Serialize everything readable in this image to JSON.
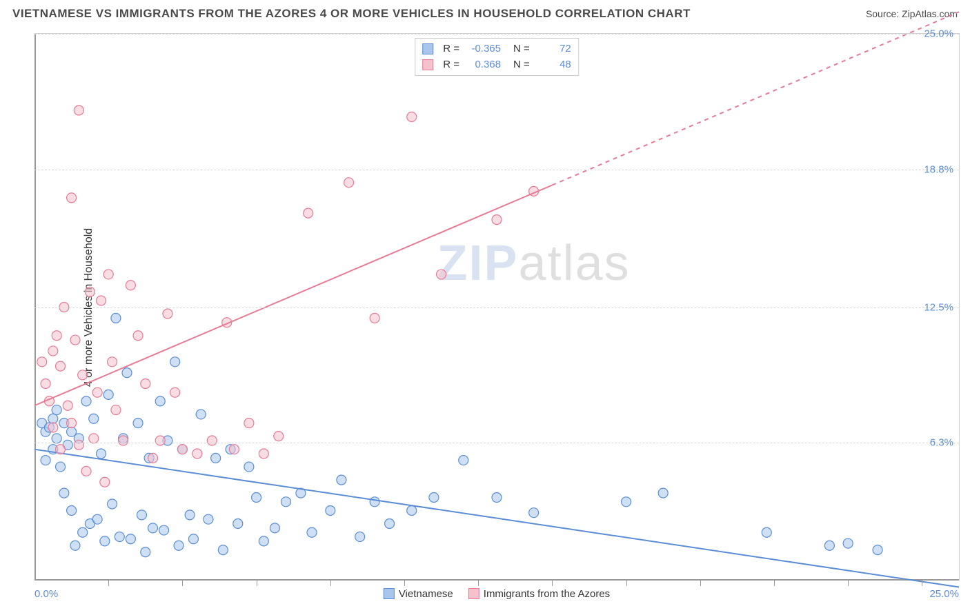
{
  "header": {
    "title": "VIETNAMESE VS IMMIGRANTS FROM THE AZORES 4 OR MORE VEHICLES IN HOUSEHOLD CORRELATION CHART",
    "source": "Source: ZipAtlas.com"
  },
  "watermark": {
    "zip": "ZIP",
    "atlas": "atlas"
  },
  "chart": {
    "type": "scatter",
    "xlim": [
      0,
      25
    ],
    "ylim": [
      0,
      25
    ],
    "x_min_label": "0.0%",
    "x_max_label": "25.0%",
    "y_ticks": [
      6.3,
      12.5,
      18.8,
      25.0
    ],
    "y_tick_labels": [
      "6.3%",
      "12.5%",
      "18.8%",
      "25.0%"
    ],
    "y_axis_title": "4 or more Vehicles in Household",
    "x_tick_step": 2.0,
    "background_color": "#ffffff",
    "grid_color": "#d8d8d8",
    "axis_color": "#999999",
    "marker_radius": 7,
    "marker_opacity": 0.55,
    "line_width": 2,
    "series": [
      {
        "name": "Vietnamese",
        "color_fill": "#a8c6ec",
        "color_stroke": "#5b8dd6",
        "r_value": "-0.365",
        "n_value": "72",
        "trend": {
          "x1": 0,
          "y1": 6.0,
          "x2": 25,
          "y2": -0.3,
          "solid_until_x": 25
        },
        "points": [
          [
            0.2,
            7.2
          ],
          [
            0.3,
            5.5
          ],
          [
            0.3,
            6.8
          ],
          [
            0.4,
            7.0
          ],
          [
            0.5,
            6.0
          ],
          [
            0.5,
            7.4
          ],
          [
            0.6,
            6.5
          ],
          [
            0.6,
            7.8
          ],
          [
            0.7,
            5.2
          ],
          [
            0.8,
            7.2
          ],
          [
            0.8,
            4.0
          ],
          [
            0.9,
            6.2
          ],
          [
            1.0,
            6.8
          ],
          [
            1.0,
            3.2
          ],
          [
            1.1,
            1.6
          ],
          [
            1.2,
            6.5
          ],
          [
            1.3,
            2.2
          ],
          [
            1.4,
            8.2
          ],
          [
            1.5,
            2.6
          ],
          [
            1.6,
            7.4
          ],
          [
            1.7,
            2.8
          ],
          [
            1.8,
            5.8
          ],
          [
            1.9,
            1.8
          ],
          [
            2.0,
            8.5
          ],
          [
            2.1,
            3.5
          ],
          [
            2.2,
            12.0
          ],
          [
            2.3,
            2.0
          ],
          [
            2.4,
            6.5
          ],
          [
            2.5,
            9.5
          ],
          [
            2.6,
            1.9
          ],
          [
            2.8,
            7.2
          ],
          [
            2.9,
            3.0
          ],
          [
            3.0,
            1.3
          ],
          [
            3.1,
            5.6
          ],
          [
            3.2,
            2.4
          ],
          [
            3.4,
            8.2
          ],
          [
            3.5,
            2.3
          ],
          [
            3.6,
            6.4
          ],
          [
            3.8,
            10.0
          ],
          [
            3.9,
            1.6
          ],
          [
            4.0,
            6.0
          ],
          [
            4.2,
            3.0
          ],
          [
            4.3,
            1.9
          ],
          [
            4.5,
            7.6
          ],
          [
            4.7,
            2.8
          ],
          [
            4.9,
            5.6
          ],
          [
            5.1,
            1.4
          ],
          [
            5.3,
            6.0
          ],
          [
            5.5,
            2.6
          ],
          [
            5.8,
            5.2
          ],
          [
            6.0,
            3.8
          ],
          [
            6.2,
            1.8
          ],
          [
            6.5,
            2.4
          ],
          [
            6.8,
            3.6
          ],
          [
            7.2,
            4.0
          ],
          [
            7.5,
            2.2
          ],
          [
            8.0,
            3.2
          ],
          [
            8.3,
            4.6
          ],
          [
            8.8,
            2.0
          ],
          [
            9.2,
            3.6
          ],
          [
            9.6,
            2.6
          ],
          [
            10.2,
            3.2
          ],
          [
            10.8,
            3.8
          ],
          [
            11.6,
            5.5
          ],
          [
            12.5,
            3.8
          ],
          [
            13.5,
            3.1
          ],
          [
            16.0,
            3.6
          ],
          [
            17.0,
            4.0
          ],
          [
            19.8,
            2.2
          ],
          [
            21.5,
            1.6
          ],
          [
            22.0,
            1.7
          ],
          [
            22.8,
            1.4
          ]
        ]
      },
      {
        "name": "Immigrants from the Azores",
        "color_fill": "#f4c1cd",
        "color_stroke": "#e77a94",
        "r_value": "0.368",
        "n_value": "48",
        "trend": {
          "x1": 0,
          "y1": 8.0,
          "x2": 25,
          "y2": 26.0,
          "solid_until_x": 14
        },
        "points": [
          [
            0.2,
            10.0
          ],
          [
            0.3,
            9.0
          ],
          [
            0.4,
            8.2
          ],
          [
            0.5,
            10.5
          ],
          [
            0.5,
            7.0
          ],
          [
            0.6,
            11.2
          ],
          [
            0.7,
            6.0
          ],
          [
            0.7,
            9.8
          ],
          [
            0.8,
            12.5
          ],
          [
            0.9,
            8.0
          ],
          [
            1.0,
            7.2
          ],
          [
            1.0,
            17.5
          ],
          [
            1.1,
            11.0
          ],
          [
            1.2,
            6.2
          ],
          [
            1.2,
            21.5
          ],
          [
            1.3,
            9.4
          ],
          [
            1.4,
            5.0
          ],
          [
            1.5,
            13.2
          ],
          [
            1.6,
            6.5
          ],
          [
            1.7,
            8.6
          ],
          [
            1.8,
            12.8
          ],
          [
            1.9,
            4.5
          ],
          [
            2.0,
            14.0
          ],
          [
            2.1,
            10.0
          ],
          [
            2.2,
            7.8
          ],
          [
            2.4,
            6.4
          ],
          [
            2.6,
            13.5
          ],
          [
            2.8,
            11.2
          ],
          [
            3.0,
            9.0
          ],
          [
            3.2,
            5.6
          ],
          [
            3.4,
            6.4
          ],
          [
            3.6,
            12.2
          ],
          [
            3.8,
            8.6
          ],
          [
            4.0,
            6.0
          ],
          [
            4.4,
            5.8
          ],
          [
            4.8,
            6.4
          ],
          [
            5.2,
            11.8
          ],
          [
            5.4,
            6.0
          ],
          [
            5.8,
            7.2
          ],
          [
            6.2,
            5.8
          ],
          [
            6.6,
            6.6
          ],
          [
            7.4,
            16.8
          ],
          [
            8.5,
            18.2
          ],
          [
            9.2,
            12.0
          ],
          [
            10.2,
            21.2
          ],
          [
            11.0,
            14.0
          ],
          [
            12.5,
            16.5
          ],
          [
            13.5,
            17.8
          ]
        ]
      }
    ],
    "legend_bottom": [
      {
        "label": "Vietnamese",
        "fill": "#a8c6ec",
        "stroke": "#5b8dd6"
      },
      {
        "label": "Immigrants from the Azores",
        "fill": "#f4c1cd",
        "stroke": "#e77a94"
      }
    ],
    "legend_top": {
      "r_label": "R =",
      "n_label": "N ="
    }
  }
}
